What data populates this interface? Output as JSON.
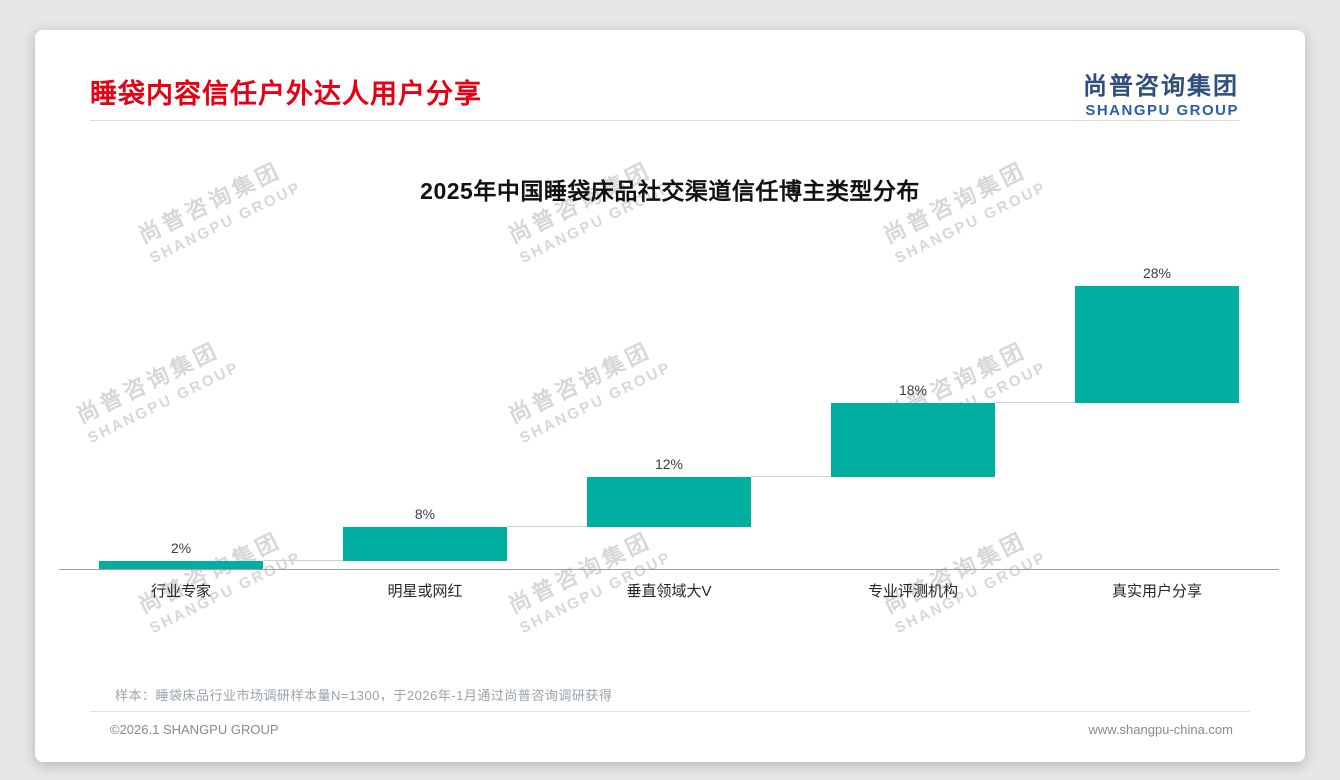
{
  "page": {
    "title": "睡袋内容信任户外达人用户分享",
    "title_color": "#E60012",
    "logo": {
      "cn": "尚普咨询集团",
      "en": "SHANGPU GROUP",
      "cn_color": "#2E4E7E",
      "en_color": "#2C5EA8"
    }
  },
  "chart_data": {
    "type": "bar",
    "subtype": "waterfall",
    "title": "2025年中国睡袋床品社交渠道信任博主类型分布",
    "categories": [
      "行业专家",
      "明星或网红",
      "垂直领域大V",
      "专业评测机构",
      "真实用户分享"
    ],
    "values": [
      2,
      8,
      12,
      18,
      28
    ],
    "value_labels": [
      "2%",
      "8%",
      "12%",
      "18%",
      "28%"
    ],
    "cumulative": [
      2,
      10,
      22,
      40,
      68
    ],
    "bar_color": "#00AFA0",
    "connector_color": "#cdd2d6",
    "baseline_color": "#9e9e9e",
    "ylim": [
      0,
      68
    ],
    "grid": false,
    "legend": false
  },
  "watermark": {
    "line1": "尚普咨询集团",
    "line2": "SHANGPU GROUP"
  },
  "footnote": "样本：睡袋床品行业市场调研样本量N=1300，于2026年-1月通过尚普咨询调研获得",
  "footer": {
    "left": "©2026.1 SHANGPU GROUP",
    "right": "www.shangpu-china.com"
  }
}
